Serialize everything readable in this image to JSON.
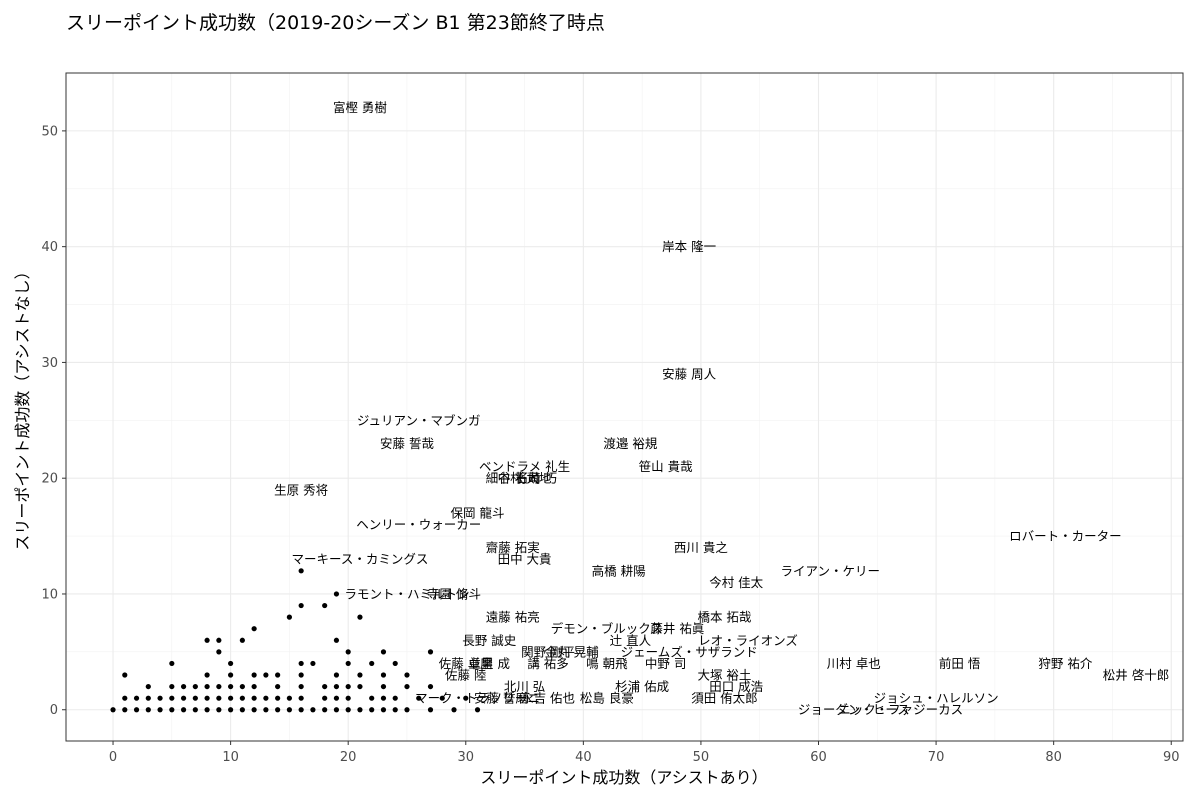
{
  "chart_data": {
    "type": "scatter",
    "title": "スリーポイント成功数（2019-20シーズン B1 第23節終了時点",
    "xlabel": "スリーポイント成功数（アシストあり）",
    "ylabel": "スリーポイント成功数（アシストなし）",
    "xlim": [
      -4,
      91
    ],
    "ylim": [
      -2.7,
      55
    ],
    "xticks": [
      0,
      10,
      20,
      30,
      40,
      50,
      60,
      70,
      80,
      90
    ],
    "yticks": [
      0,
      10,
      20,
      30,
      40,
      50
    ],
    "grid": true,
    "labeled_points": [
      {
        "label": "富樫 勇樹",
        "x": 21,
        "y": 52
      },
      {
        "label": "岸本 隆一",
        "x": 49,
        "y": 40
      },
      {
        "label": "安藤 周人",
        "x": 49,
        "y": 29
      },
      {
        "label": "ジュリアン・マブンガ",
        "x": 26,
        "y": 25
      },
      {
        "label": "安藤 誓哉",
        "x": 25,
        "y": 23
      },
      {
        "label": "渡邉 裕規",
        "x": 44,
        "y": 23
      },
      {
        "label": "ベンドラメ 礼生",
        "x": 35,
        "y": 21
      },
      {
        "label": "笹山 貴哉",
        "x": 47,
        "y": 21
      },
      {
        "label": "細谷 将司",
        "x": 34,
        "y": 20
      },
      {
        "label": "中村 太地",
        "x": 35,
        "y": 20
      },
      {
        "label": "石崎 巧",
        "x": 36,
        "y": 20
      },
      {
        "label": "生原 秀将",
        "x": 16,
        "y": 19
      },
      {
        "label": "保岡 龍斗",
        "x": 31,
        "y": 17
      },
      {
        "label": "ヘンリー・ウォーカー",
        "x": 26,
        "y": 16
      },
      {
        "label": "ロバート・カーター",
        "x": 81,
        "y": 15
      },
      {
        "label": "齋藤 拓実",
        "x": 34,
        "y": 14
      },
      {
        "label": "西川 貴之",
        "x": 50,
        "y": 14
      },
      {
        "label": "田中 大貴",
        "x": 35,
        "y": 13
      },
      {
        "label": "マーキース・カミングス",
        "x": 21,
        "y": 13
      },
      {
        "label": "高橋 耕陽",
        "x": 43,
        "y": 12
      },
      {
        "label": "ライアン・ケリー",
        "x": 61,
        "y": 12
      },
      {
        "label": "今村 佳太",
        "x": 53,
        "y": 11
      },
      {
        "label": "ラモント・ハミルトン",
        "x": 25,
        "y": 10
      },
      {
        "label": "寺園 脩斗",
        "x": 29,
        "y": 10
      },
      {
        "label": "遠藤 祐亮",
        "x": 34,
        "y": 8
      },
      {
        "label": "橋本 拓哉",
        "x": 52,
        "y": 8
      },
      {
        "label": "デモン・ブルックス",
        "x": 42,
        "y": 7
      },
      {
        "label": "藤井 祐眞",
        "x": 48,
        "y": 7
      },
      {
        "label": "長野 誠史",
        "x": 32,
        "y": 6
      },
      {
        "label": "辻 直人",
        "x": 44,
        "y": 6
      },
      {
        "label": "レオ・ライオンズ",
        "x": 54,
        "y": 6
      },
      {
        "label": "関野 剛平",
        "x": 37,
        "y": 5
      },
      {
        "label": "金丸 晃輔",
        "x": 39,
        "y": 5
      },
      {
        "label": "ジェームズ・サザランド",
        "x": 49,
        "y": 5
      },
      {
        "label": "佐藤 卓磨",
        "x": 30,
        "y": 4
      },
      {
        "label": "並里 成",
        "x": 32,
        "y": 4
      },
      {
        "label": "講 祐多",
        "x": 37,
        "y": 4
      },
      {
        "label": "鳴 朝飛",
        "x": 42,
        "y": 4
      },
      {
        "label": "中野 司",
        "x": 47,
        "y": 4
      },
      {
        "label": "川村 卓也",
        "x": 63,
        "y": 4
      },
      {
        "label": "前田 悟",
        "x": 72,
        "y": 4
      },
      {
        "label": "狩野 祐介",
        "x": 81,
        "y": 4
      },
      {
        "label": "佐藤 陸",
        "x": 30,
        "y": 3
      },
      {
        "label": "大塚 裕土",
        "x": 52,
        "y": 3
      },
      {
        "label": "松井 啓十郎",
        "x": 87,
        "y": 3
      },
      {
        "label": "北川 弘",
        "x": 35,
        "y": 2
      },
      {
        "label": "杉浦 佑成",
        "x": 45,
        "y": 2
      },
      {
        "label": "田口 成浩",
        "x": 53,
        "y": 2
      },
      {
        "label": "ジョシュ・ハレルソン",
        "x": 70,
        "y": 1
      },
      {
        "label": "マーク・トラソリーニ",
        "x": 31,
        "y": 1
      },
      {
        "label": "須田 侑太郎",
        "x": 52,
        "y": 1
      },
      {
        "label": "ジョーダン・ヒース",
        "x": 63,
        "y": 0
      },
      {
        "label": "ニック・ファジーカス",
        "x": 67,
        "y": 0
      },
      {
        "label": "安藤 誓磨",
        "x": 33,
        "y": 1
      },
      {
        "label": "永吉 佑也",
        "x": 37,
        "y": 1
      },
      {
        "label": "松島 良豪",
        "x": 42,
        "y": 1
      }
    ],
    "points": [
      [
        0,
        0
      ],
      [
        1,
        0
      ],
      [
        2,
        0
      ],
      [
        3,
        0
      ],
      [
        4,
        0
      ],
      [
        5,
        0
      ],
      [
        6,
        0
      ],
      [
        7,
        0
      ],
      [
        8,
        0
      ],
      [
        9,
        0
      ],
      [
        10,
        0
      ],
      [
        11,
        0
      ],
      [
        12,
        0
      ],
      [
        13,
        0
      ],
      [
        14,
        0
      ],
      [
        15,
        0
      ],
      [
        16,
        0
      ],
      [
        17,
        0
      ],
      [
        18,
        0
      ],
      [
        19,
        0
      ],
      [
        20,
        0
      ],
      [
        21,
        0
      ],
      [
        22,
        0
      ],
      [
        23,
        0
      ],
      [
        24,
        0
      ],
      [
        25,
        0
      ],
      [
        27,
        0
      ],
      [
        29,
        0
      ],
      [
        31,
        0
      ],
      [
        1,
        1
      ],
      [
        2,
        1
      ],
      [
        3,
        1
      ],
      [
        4,
        1
      ],
      [
        5,
        1
      ],
      [
        6,
        1
      ],
      [
        7,
        1
      ],
      [
        8,
        1
      ],
      [
        9,
        1
      ],
      [
        10,
        1
      ],
      [
        11,
        1
      ],
      [
        12,
        1
      ],
      [
        13,
        1
      ],
      [
        14,
        1
      ],
      [
        15,
        1
      ],
      [
        16,
        1
      ],
      [
        18,
        1
      ],
      [
        19,
        1
      ],
      [
        20,
        1
      ],
      [
        22,
        1
      ],
      [
        23,
        1
      ],
      [
        24,
        1
      ],
      [
        26,
        1
      ],
      [
        28,
        1
      ],
      [
        30,
        1
      ],
      [
        3,
        2
      ],
      [
        5,
        2
      ],
      [
        6,
        2
      ],
      [
        7,
        2
      ],
      [
        8,
        2
      ],
      [
        9,
        2
      ],
      [
        10,
        2
      ],
      [
        11,
        2
      ],
      [
        12,
        2
      ],
      [
        14,
        2
      ],
      [
        16,
        2
      ],
      [
        18,
        2
      ],
      [
        19,
        2
      ],
      [
        20,
        2
      ],
      [
        21,
        2
      ],
      [
        23,
        2
      ],
      [
        25,
        2
      ],
      [
        27,
        2
      ],
      [
        1,
        3
      ],
      [
        8,
        3
      ],
      [
        10,
        3
      ],
      [
        12,
        3
      ],
      [
        13,
        3
      ],
      [
        14,
        3
      ],
      [
        16,
        3
      ],
      [
        19,
        3
      ],
      [
        21,
        3
      ],
      [
        23,
        3
      ],
      [
        25,
        3
      ],
      [
        5,
        4
      ],
      [
        10,
        4
      ],
      [
        16,
        4
      ],
      [
        17,
        4
      ],
      [
        20,
        4
      ],
      [
        22,
        4
      ],
      [
        24,
        4
      ],
      [
        9,
        5
      ],
      [
        20,
        5
      ],
      [
        23,
        5
      ],
      [
        27,
        5
      ],
      [
        8,
        6
      ],
      [
        9,
        6
      ],
      [
        11,
        6
      ],
      [
        19,
        6
      ],
      [
        12,
        7
      ],
      [
        15,
        8
      ],
      [
        21,
        8
      ],
      [
        16,
        9
      ],
      [
        18,
        9
      ],
      [
        19,
        10
      ],
      [
        16,
        12
      ]
    ]
  }
}
